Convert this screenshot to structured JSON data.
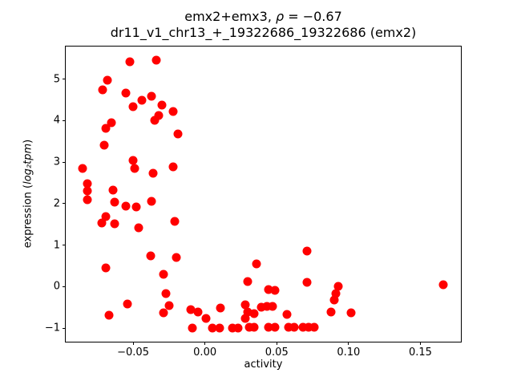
{
  "figure": {
    "title_line1_prefix": "emx2+emx3, ",
    "title_line1_rho": "ρ",
    "title_line1_suffix": " = −0.67",
    "title_line2": "dr11_v1_chr13_+_19322686_19322686 (emx2)",
    "xlabel": "activity",
    "ylabel_prefix": "expression (",
    "ylabel_italic": "log₂tpm",
    "ylabel_suffix": ")"
  },
  "chart_data": {
    "type": "scatter",
    "title": "emx2+emx3, ρ = −0.67",
    "subtitle": "dr11_v1_chr13_+_19322686_19322686 (emx2)",
    "rho": -0.67,
    "xlabel": "activity",
    "ylabel": "expression (log₂ tpm)",
    "marker_color": "#ff0000",
    "marker_size_px": 11,
    "grid": false,
    "legend": null,
    "xlim": [
      -0.0969,
      0.1782
    ],
    "ylim": [
      -1.323,
      5.783
    ],
    "xticks": [
      -0.05,
      0.0,
      0.05,
      0.1,
      0.15
    ],
    "xtick_labels": [
      "−0.05",
      "0.00",
      "0.05",
      "0.10",
      "0.15"
    ],
    "yticks": [
      -1,
      0,
      1,
      2,
      3,
      4,
      5
    ],
    "ytick_labels": [
      "−1",
      "0",
      "1",
      "2",
      "3",
      "4",
      "5"
    ],
    "points": [
      [
        -0.052,
        5.42
      ],
      [
        -0.034,
        5.46
      ],
      [
        -0.068,
        4.97
      ],
      [
        -0.071,
        4.74
      ],
      [
        -0.055,
        4.67
      ],
      [
        -0.037,
        4.59
      ],
      [
        -0.044,
        4.49
      ],
      [
        -0.05,
        4.33
      ],
      [
        -0.03,
        4.37
      ],
      [
        -0.022,
        4.22
      ],
      [
        -0.032,
        4.13
      ],
      [
        -0.035,
        4.01
      ],
      [
        -0.065,
        3.94
      ],
      [
        -0.069,
        3.82
      ],
      [
        -0.019,
        3.67
      ],
      [
        -0.07,
        3.4
      ],
      [
        -0.05,
        3.05
      ],
      [
        -0.085,
        2.84
      ],
      [
        -0.049,
        2.85
      ],
      [
        -0.022,
        2.89
      ],
      [
        -0.036,
        2.73
      ],
      [
        -0.082,
        2.48
      ],
      [
        -0.082,
        2.31
      ],
      [
        -0.064,
        2.33
      ],
      [
        -0.082,
        2.09
      ],
      [
        -0.063,
        2.04
      ],
      [
        -0.055,
        1.95
      ],
      [
        -0.048,
        1.92
      ],
      [
        -0.037,
        2.06
      ],
      [
        -0.069,
        1.68
      ],
      [
        -0.072,
        1.53
      ],
      [
        -0.063,
        1.51
      ],
      [
        -0.046,
        1.42
      ],
      [
        -0.021,
        1.58
      ],
      [
        -0.038,
        0.75
      ],
      [
        -0.02,
        0.71
      ],
      [
        -0.069,
        0.46
      ],
      [
        -0.029,
        0.29
      ],
      [
        -0.027,
        -0.17
      ],
      [
        -0.054,
        -0.41
      ],
      [
        -0.025,
        -0.46
      ],
      [
        -0.029,
        -0.62
      ],
      [
        -0.067,
        -0.68
      ],
      [
        -0.01,
        -0.55
      ],
      [
        -0.005,
        -0.6
      ],
      [
        -0.009,
        -0.99
      ],
      [
        0.001,
        -0.76
      ],
      [
        0.071,
        0.86
      ],
      [
        0.036,
        0.55
      ],
      [
        0.03,
        0.12
      ],
      [
        0.071,
        0.11
      ],
      [
        0.044,
        -0.07
      ],
      [
        0.049,
        -0.09
      ],
      [
        0.093,
        0.01
      ],
      [
        0.091,
        -0.17
      ],
      [
        0.09,
        -0.31
      ],
      [
        0.028,
        -0.44
      ],
      [
        0.03,
        -0.61
      ],
      [
        0.028,
        -0.77
      ],
      [
        0.034,
        -0.64
      ],
      [
        0.039,
        -0.5
      ],
      [
        0.043,
        -0.47
      ],
      [
        0.047,
        -0.48
      ],
      [
        0.057,
        -0.67
      ],
      [
        0.011,
        -0.51
      ],
      [
        0.088,
        -0.6
      ],
      [
        0.102,
        -0.62
      ],
      [
        0.166,
        0.04
      ],
      [
        0.005,
        -0.99
      ],
      [
        0.01,
        -0.99
      ],
      [
        0.019,
        -0.99
      ],
      [
        0.023,
        -0.99
      ],
      [
        0.031,
        -0.98
      ],
      [
        0.034,
        -0.98
      ],
      [
        0.044,
        -0.98
      ],
      [
        0.049,
        -0.98
      ],
      [
        0.058,
        -0.98
      ],
      [
        0.062,
        -0.98
      ],
      [
        0.068,
        -0.98
      ],
      [
        0.072,
        -0.98
      ],
      [
        0.076,
        -0.98
      ]
    ]
  }
}
